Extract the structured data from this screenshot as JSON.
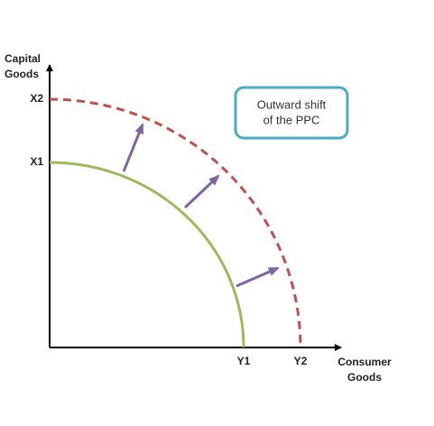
{
  "axes": {
    "y_title": [
      "Capital",
      "Goods"
    ],
    "x_title": [
      "Consumer",
      "Goods"
    ]
  },
  "y_points": [
    "X2",
    "X1"
  ],
  "x_points": [
    "Y1",
    "Y2"
  ],
  "callout": [
    "Outward shift",
    "of the PPC"
  ]
}
